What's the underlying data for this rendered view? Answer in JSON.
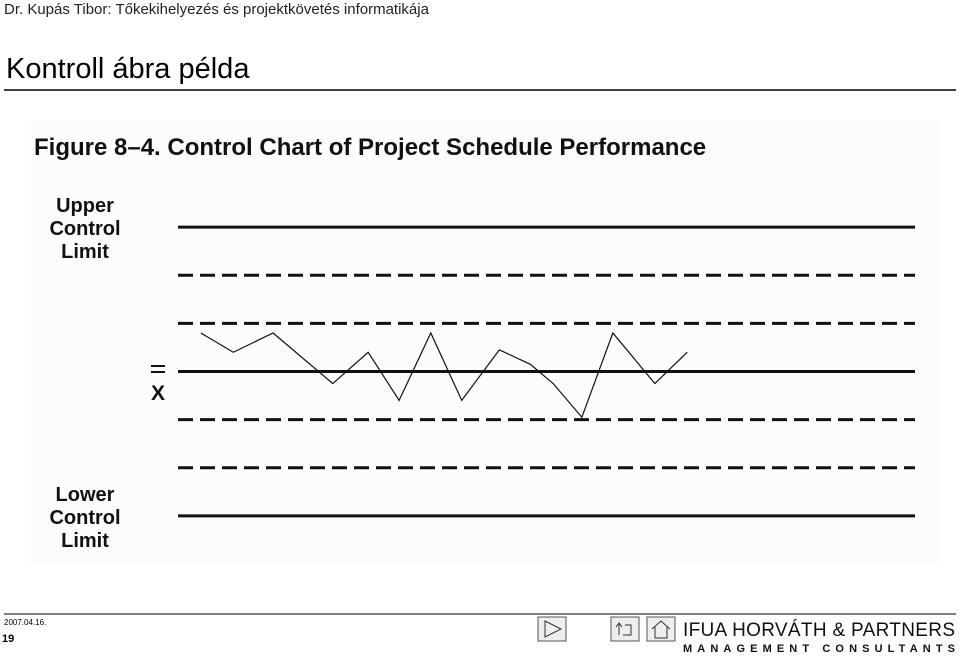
{
  "header": {
    "author_line": "Dr. Kupás Tibor: Tőkekihelyezés és projektkövetés informatikája",
    "title": "Kontroll ábra példa"
  },
  "chart_data": {
    "type": "line",
    "title": "Figure 8–4. Control Chart of Project Schedule Performance",
    "upper_label": [
      "Upper",
      "Control",
      "Limit"
    ],
    "mean_label": "X",
    "lower_label": [
      "Lower",
      "Control",
      "Limit"
    ],
    "x": [
      3.1,
      7.5,
      12.9,
      21.0,
      25.8,
      30.0,
      34.3,
      38.5,
      43.6,
      47.8,
      50.9,
      54.8,
      59.0,
      64.7,
      69.1
    ],
    "values": [
      0.8,
      0.4,
      0.8,
      -0.25,
      0.4,
      -0.6,
      0.8,
      -0.6,
      0.45,
      0.15,
      -0.25,
      -0.95,
      0.8,
      -0.25,
      0.4
    ],
    "color": "#111111",
    "xlim": [
      0,
      100
    ],
    "ylim": [
      -3.5,
      3.5
    ],
    "reference_lines": [
      {
        "value": 3,
        "style": "solid"
      },
      {
        "value": 2,
        "style": "dashed"
      },
      {
        "value": 1,
        "style": "dashed"
      },
      {
        "value": 0,
        "style": "solid"
      },
      {
        "value": -1,
        "style": "dashed"
      },
      {
        "value": -2,
        "style": "dashed"
      },
      {
        "value": -3,
        "style": "solid"
      }
    ]
  },
  "footer": {
    "date": "2007.04.16.",
    "page": "19",
    "logo": "IFUA HORVÁTH & PARTNERS",
    "logo_sub": "MANAGEMENT CONSULTANTS"
  }
}
